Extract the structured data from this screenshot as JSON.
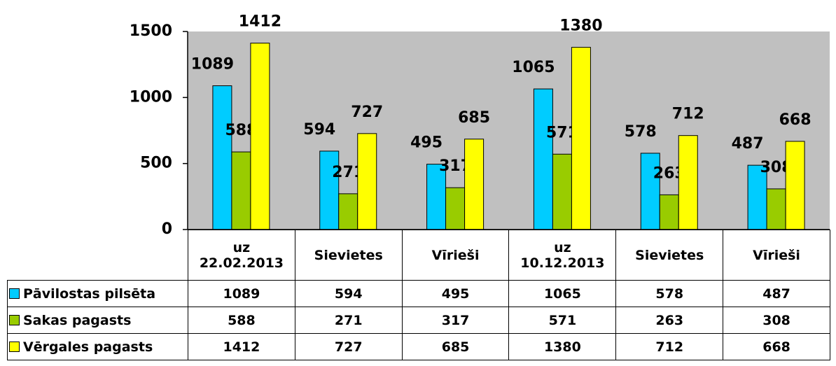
{
  "chart_data": {
    "type": "bar",
    "categories": [
      "uz 22.02.2013",
      "Sievietes",
      "Vīrieši",
      "uz 10.12.2013",
      "Sievietes",
      "Vīrieši"
    ],
    "series": [
      {
        "name": "Pāvilostas pilsēta",
        "color": "#00ccff",
        "values": [
          1089,
          594,
          495,
          1065,
          578,
          487
        ]
      },
      {
        "name": "Sakas pagasts",
        "color": "#99cc00",
        "values": [
          588,
          271,
          317,
          571,
          263,
          308
        ]
      },
      {
        "name": "Vērgales pagasts",
        "color": "#ffff00",
        "values": [
          1412,
          727,
          685,
          1380,
          712,
          668
        ]
      }
    ],
    "ylim": [
      0,
      1500
    ],
    "yticks": [
      0,
      500,
      1000,
      1500
    ],
    "plot_background": "#c0c0c0"
  }
}
